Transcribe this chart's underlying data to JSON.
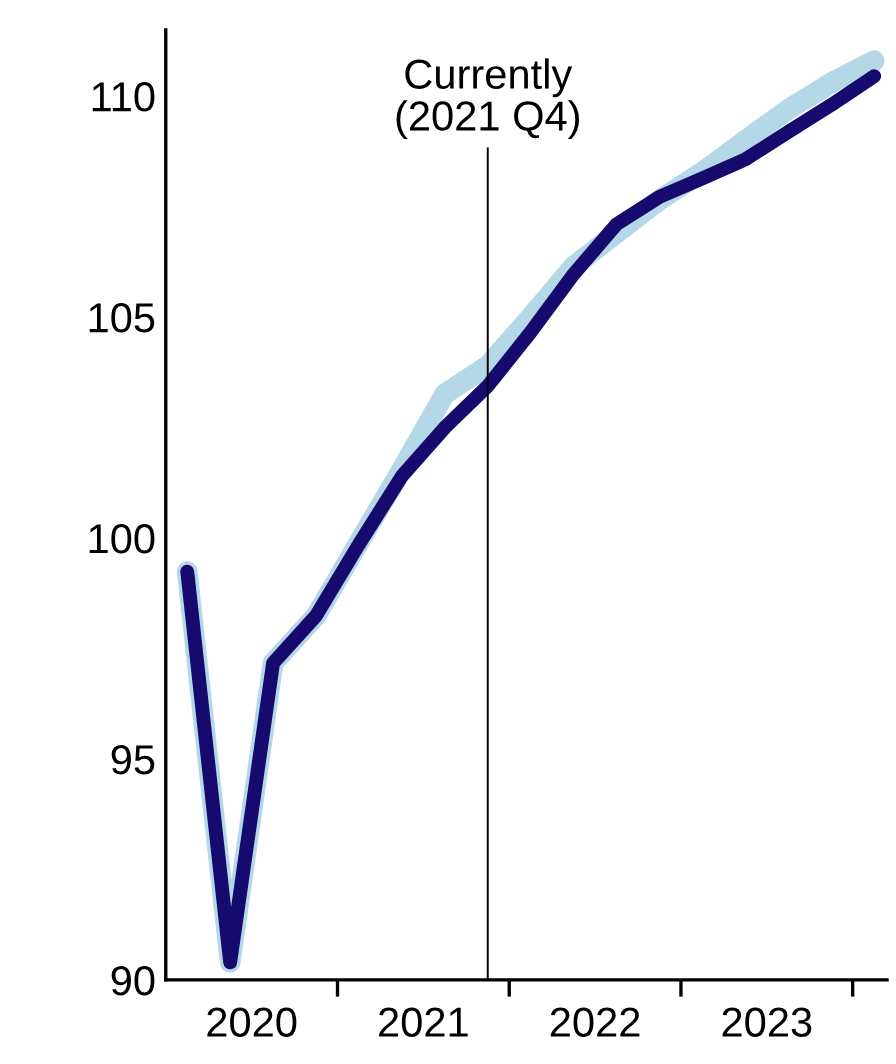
{
  "chart_data": {
    "type": "line",
    "x": [
      2020.125,
      2020.375,
      2020.625,
      2020.875,
      2021.125,
      2021.375,
      2021.625,
      2021.875,
      2022.125,
      2022.375,
      2022.625,
      2022.875,
      2023.125,
      2023.375,
      2023.625,
      2023.875,
      2024.125
    ],
    "series": [
      {
        "color": "#b5d8e8",
        "values": [
          99.24,
          90.4,
          97.17,
          98.24,
          99.9,
          101.55,
          103.26,
          103.9,
          105.0,
          106.15,
          106.9,
          107.65,
          108.28,
          109.0,
          109.7,
          110.3,
          110.8
        ]
      },
      {
        "color": "#170a6e",
        "values": [
          99.24,
          90.4,
          97.17,
          98.24,
          99.86,
          101.4,
          102.5,
          103.44,
          104.66,
          105.97,
          107.1,
          107.72,
          108.14,
          108.57,
          109.19,
          109.8,
          110.45
        ]
      }
    ],
    "xlim": [
      2020,
      2024.2
    ],
    "ylim": [
      90,
      111.5
    ],
    "yticks": [
      90,
      95,
      100,
      105,
      110
    ],
    "xticks": [
      {
        "value": 2020.5,
        "label": "2020"
      },
      {
        "value": 2021,
        "label": null
      },
      {
        "value": 2021.5,
        "label": "2021"
      },
      {
        "value": 2022,
        "label": null
      },
      {
        "value": 2022.5,
        "label": "2022"
      },
      {
        "value": 2023,
        "label": null
      },
      {
        "value": 2023.5,
        "label": "2023"
      },
      {
        "value": 2024,
        "label": null
      }
    ],
    "ref_lines": [
      {
        "axis": "x",
        "value": 2021.875,
        "label": "Currently\n(2021 Q4)",
        "color": "#000000"
      }
    ],
    "grid": false,
    "legend": false,
    "marker": "none",
    "line_style": "solid"
  }
}
